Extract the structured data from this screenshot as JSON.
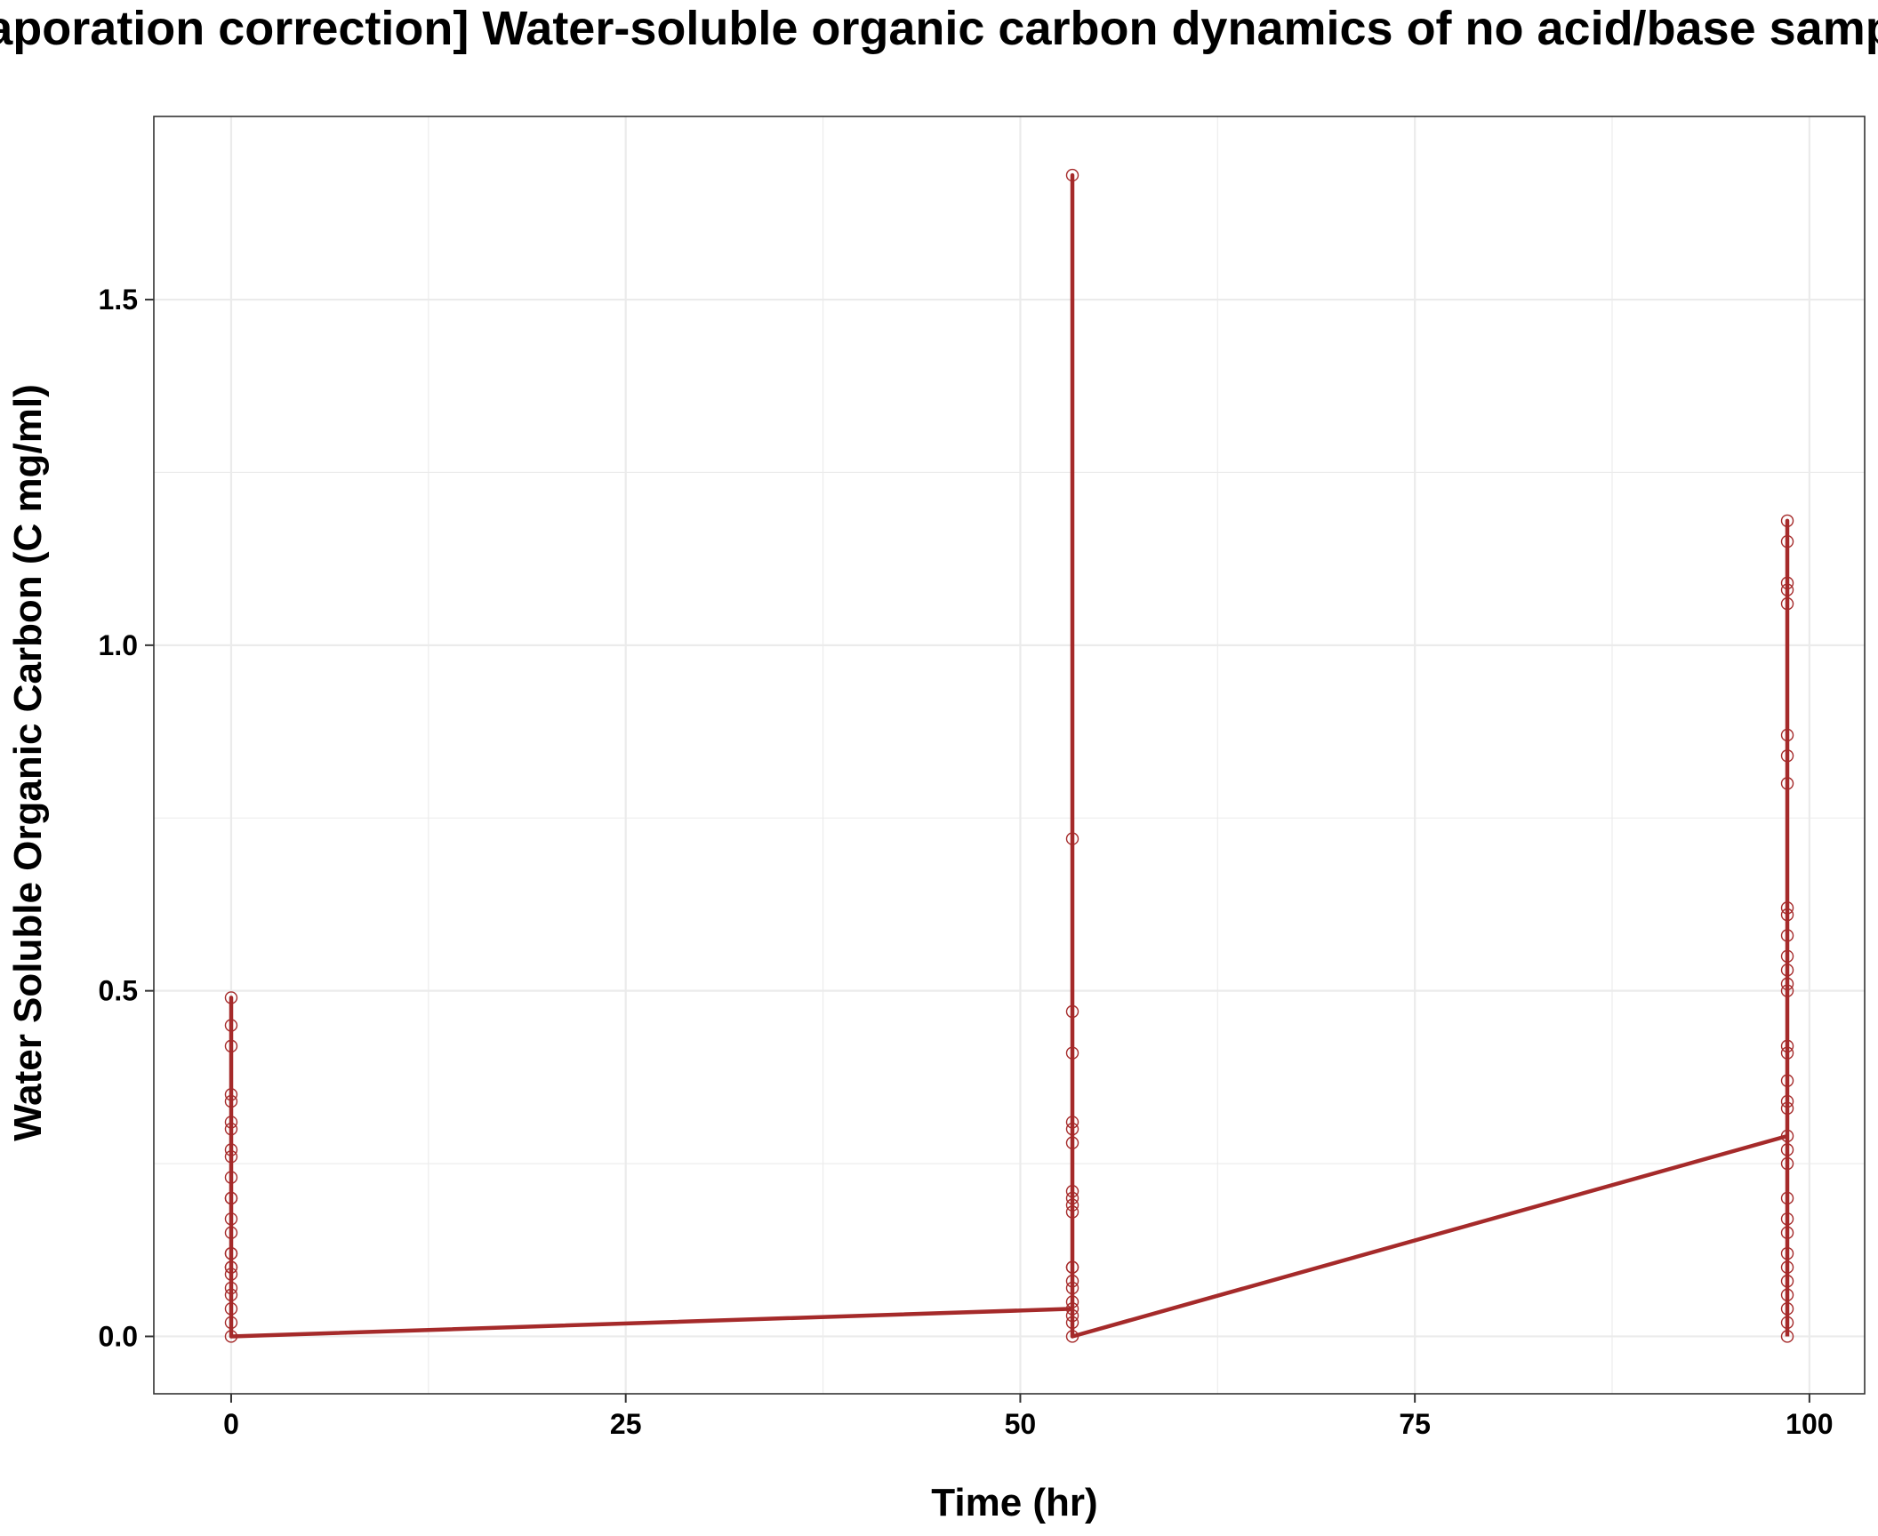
{
  "chart_data": {
    "type": "line",
    "title": "[evaporation correction] Water-soluble organic carbon dynamics of no acid/base samples",
    "xlabel": "Time (hr)",
    "ylabel": "Water Soluble Organic Carbon (C mg/ml)",
    "xlim": [
      -4.9,
      103.5
    ],
    "ylim": [
      -0.083,
      1.765
    ],
    "x_ticks": [
      0,
      25,
      50,
      75,
      100
    ],
    "x_tick_labels": [
      "0",
      "25",
      "50",
      "75",
      "100"
    ],
    "y_ticks": [
      0.0,
      0.5,
      1.0,
      1.5
    ],
    "y_tick_labels": [
      "0.0",
      "0.5",
      "1.0",
      "1.5"
    ],
    "grid": true,
    "legend": "none",
    "colors": {
      "series": "#a52a2a",
      "frame": "#333333",
      "grid": "#ebebeb"
    },
    "series": [
      {
        "line": [
          [
            0,
            0.0
          ],
          [
            0,
            0.49
          ],
          [
            0,
            0.0
          ],
          [
            53.3,
            0.04
          ],
          [
            53.3,
            1.68
          ],
          [
            53.3,
            0.0
          ],
          [
            98.6,
            0.29
          ],
          [
            98.6,
            1.18
          ],
          [
            98.6,
            0.0
          ]
        ],
        "points": [
          {
            "x": 0,
            "y": [
              0.49,
              0.45,
              0.42,
              0.35,
              0.34,
              0.31,
              0.3,
              0.27,
              0.26,
              0.23,
              0.2,
              0.2,
              0.17,
              0.15,
              0.12,
              0.12,
              0.1,
              0.1,
              0.09,
              0.07,
              0.06,
              0.04,
              0.02,
              0.0
            ]
          },
          {
            "x": 53.3,
            "y": [
              1.68,
              0.72,
              0.47,
              0.41,
              0.31,
              0.3,
              0.28,
              0.21,
              0.2,
              0.19,
              0.18,
              0.1,
              0.1,
              0.08,
              0.07,
              0.05,
              0.04,
              0.03,
              0.02,
              0.0
            ]
          },
          {
            "x": 98.6,
            "y": [
              1.18,
              1.15,
              1.09,
              1.08,
              1.06,
              0.87,
              0.84,
              0.8,
              0.62,
              0.61,
              0.58,
              0.55,
              0.53,
              0.51,
              0.5,
              0.42,
              0.41,
              0.37,
              0.34,
              0.33,
              0.29,
              0.27,
              0.25,
              0.2,
              0.17,
              0.15,
              0.12,
              0.1,
              0.08,
              0.06,
              0.04,
              0.02,
              0.0
            ]
          }
        ]
      }
    ]
  }
}
